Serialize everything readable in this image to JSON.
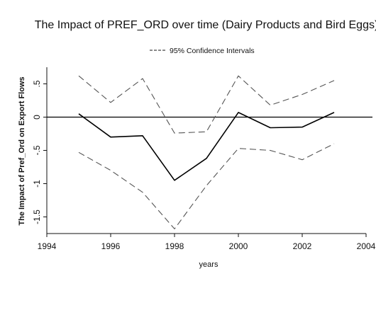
{
  "chart_data": {
    "type": "line",
    "title": "The Impact of PREF_ORD over time (Dairy Products and Bird Eggs)",
    "legend": {
      "label": "95% Confidence Intervals",
      "placement": "top-center"
    },
    "xlabel": "years",
    "ylabel": "The Impact of Pref_Ord on Export Flows",
    "xlim": [
      1994,
      2004
    ],
    "ylim": [
      -1.75,
      0.75
    ],
    "x_ticks": [
      "1994",
      "1996",
      "1998",
      "2000",
      "2002",
      "2004"
    ],
    "y_ticks": [
      ".5",
      "0",
      "-.5",
      "-1",
      "-1.5"
    ],
    "grid": false,
    "x": [
      1995,
      1996,
      1997,
      1998,
      1999,
      2000,
      2001,
      2002,
      2003
    ],
    "series": [
      {
        "style": "solid",
        "color": "#000000",
        "values": [
          0.05,
          -0.3,
          -0.28,
          -0.95,
          -0.62,
          0.07,
          -0.16,
          -0.15,
          0.07
        ]
      },
      {
        "style": "dashed",
        "color": "#555555",
        "values": [
          0.62,
          0.22,
          0.58,
          -0.24,
          -0.22,
          0.62,
          0.18,
          0.34,
          0.55
        ]
      },
      {
        "style": "dashed",
        "color": "#555555",
        "values": [
          -0.53,
          -0.8,
          -1.13,
          -1.68,
          -1.03,
          -0.47,
          -0.5,
          -0.64,
          -0.4
        ]
      }
    ],
    "reference_line": {
      "y": 0,
      "color": "#000000"
    }
  }
}
